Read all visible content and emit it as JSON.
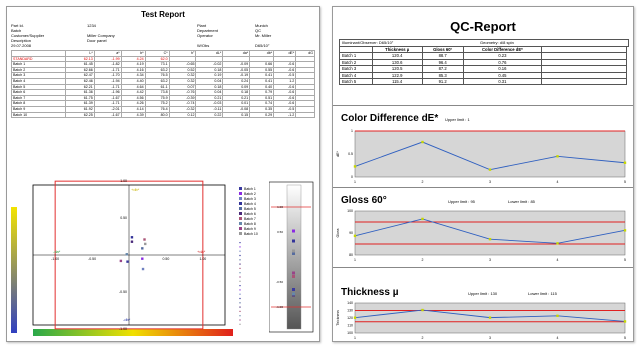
{
  "left_report": {
    "title": "Test Report",
    "meta_left": [
      {
        "label": "Part Id.",
        "value": "1234"
      },
      {
        "label": "Batch",
        "value": ""
      },
      {
        "label": "Customer/Supplier",
        "value": "Miller Company"
      },
      {
        "label": "Description",
        "value": "Door panel"
      },
      {
        "label": "29.07.2008",
        "value": ""
      }
    ],
    "meta_right": [
      {
        "label": "Plant",
        "value": "Munich"
      },
      {
        "label": "Department",
        "value": "QC"
      },
      {
        "label": "Operator",
        "value": "Mr. Miller"
      },
      {
        "label": "W/Obs",
        "value": "D65/10°"
      }
    ],
    "table": {
      "headers": [
        "",
        "L*",
        "a*",
        "b*",
        "C*",
        "h°",
        "dL*",
        "da*",
        "db*",
        "dE*",
        "dG"
      ],
      "rows": [
        [
          "STANDARD",
          "62.13",
          "-1.99",
          "4.24",
          "62.0",
          "",
          "",
          "",
          "",
          "",
          ""
        ],
        [
          "Batch 1",
          "61.45",
          "-1.82",
          "4.19",
          "73.1",
          "-0.65",
          "-0.02",
          "-0.09",
          "0.66",
          "-0.6"
        ],
        [
          "Batch 2",
          "62.66",
          "-1.71",
          "4.16",
          "63.2",
          "0.52",
          "0.18",
          "-0.05",
          "0.55",
          "-0.6"
        ],
        [
          "Batch 3",
          "62.47",
          "-1.70",
          "4.34",
          "76.5",
          "0.32",
          "0.19",
          "-0.19",
          "0.41",
          "-0.5"
        ],
        [
          "Batch 4",
          "62.46",
          "-1.94",
          "4.40",
          "63.2",
          "0.32",
          "0.04",
          "0.24",
          "0.41",
          "1.2"
        ],
        [
          "Batch 5",
          "62.21",
          "-1.71",
          "4.64",
          "61.1",
          "0.07",
          "0.18",
          "0.09",
          "0.40",
          "-0.6"
        ],
        [
          "Batch 6",
          "61.36",
          "-1.96",
          "4.42",
          "73.8",
          "-0.76",
          "0.04",
          "0.18",
          "0.79",
          "-0.6"
        ],
        [
          "Batch 7",
          "61.75",
          "-1.67",
          "4.56",
          "75.9",
          "-0.39",
          "0.21",
          "0.21",
          "0.51",
          "-0.6"
        ],
        [
          "Batch 8",
          "61.39",
          "-1.71",
          "4.26",
          "75.2",
          "-0.74",
          "-0.03",
          "0.01",
          "0.74",
          "-0.6"
        ],
        [
          "Batch 9",
          "61.92",
          "-2.01",
          "4.14",
          "76.4",
          "-0.32",
          "-0.11",
          "-0.08",
          "0.35",
          "-0.5"
        ],
        [
          "Batch 10",
          "62.25",
          "-1.67",
          "4.39",
          "80.0",
          "0.12",
          "0.22",
          "0.15",
          "0.29",
          "-1.2"
        ]
      ]
    },
    "scatter": {
      "axis_left": "-da*",
      "axis_right": "+da*",
      "axis_bottom": "-db*",
      "axis_top": "+db*",
      "ticks_x": [
        "-1.00",
        "-0.50",
        "",
        "0.50",
        "1.00"
      ],
      "ticks_y": [
        "1.00",
        "0.50",
        "-0.50",
        "-1.00"
      ],
      "legend": [
        "Batch 1",
        "Batch 2",
        "Batch 3",
        "Batch 4",
        "Batch 5",
        "Batch 6",
        "Batch 7",
        "Batch 8",
        "Batch 9",
        "Batch 10"
      ],
      "legend_colors": [
        "#3a3aa0",
        "#8a2be2",
        "#7080c0",
        "#333399",
        "#556b9f",
        "#4a2a7a",
        "#aa5577",
        "#6688aa",
        "#994488",
        "#999999"
      ],
      "points": [
        [
          -0.02,
          -0.09
        ],
        [
          0.18,
          -0.05
        ],
        [
          0.19,
          -0.19
        ],
        [
          0.04,
          0.24
        ],
        [
          0.18,
          0.09
        ],
        [
          0.04,
          0.18
        ],
        [
          0.21,
          0.21
        ],
        [
          -0.03,
          0.01
        ],
        [
          -0.11,
          -0.08
        ],
        [
          0.22,
          0.15
        ]
      ]
    },
    "lightness": {
      "ticks": [
        "1.00",
        "0.50",
        "",
        "-0.50",
        "-1.00"
      ]
    }
  },
  "right_report": {
    "title": "QC-Report",
    "illuminant": "Illuminant/Observer: D65/10°",
    "geometry": "Geometry: d/8 spin",
    "headers": [
      "",
      "Thickness µ",
      "Gloss 60°",
      "Color Difference dE*"
    ],
    "rows": [
      [
        "Batch 1",
        "120.4",
        "88.7",
        "0.23"
      ],
      [
        "Batch 2",
        "130.6",
        "96.4",
        "0.76"
      ],
      [
        "Batch 3",
        "120.5",
        "87.2",
        "0.16"
      ],
      [
        "Batch 4",
        "122.9",
        "85.3",
        "0.45"
      ],
      [
        "Batch 5",
        "115.4",
        "91.2",
        "0.31"
      ]
    ],
    "sections": [
      {
        "title": "Color Difference dE*",
        "upper": "Upper limit : 1",
        "lower": "",
        "ylabel": "dE*",
        "yticks": [
          "1",
          "0.5",
          "0"
        ]
      },
      {
        "title": "Gloss 60°",
        "upper": "Upper limit : 95",
        "lower": "Lower limit : 85",
        "ylabel": "Gloss",
        "yticks": [
          "100",
          "90",
          "80"
        ]
      },
      {
        "title": "Thickness µ",
        "upper": "Upper limit : 130",
        "lower": "Lower limit : 115",
        "ylabel": "Thickness",
        "yticks": [
          "140",
          "130",
          "120",
          "110",
          "100"
        ]
      }
    ],
    "xticks": [
      "1",
      "2",
      "3",
      "4",
      "5"
    ]
  },
  "chart_data": [
    {
      "type": "line",
      "title": "Color Difference dE*",
      "x": [
        1,
        2,
        3,
        4,
        5
      ],
      "series": [
        {
          "values": [
            0.23,
            0.76,
            0.16,
            0.45,
            0.31
          ]
        }
      ],
      "ylim": [
        0,
        1
      ],
      "upper_limit": 1
    },
    {
      "type": "line",
      "title": "Gloss 60°",
      "x": [
        1,
        2,
        3,
        4,
        5
      ],
      "series": [
        {
          "values": [
            88.7,
            96.4,
            87.2,
            85.3,
            91.2
          ]
        }
      ],
      "ylim": [
        80,
        100
      ],
      "upper_limit": 95,
      "lower_limit": 85
    },
    {
      "type": "line",
      "title": "Thickness µ",
      "x": [
        1,
        2,
        3,
        4,
        5
      ],
      "series": [
        {
          "values": [
            120.4,
            130.6,
            120.5,
            122.9,
            115.4
          ]
        }
      ],
      "ylim": [
        100,
        140
      ],
      "upper_limit": 130,
      "lower_limit": 115
    }
  ]
}
